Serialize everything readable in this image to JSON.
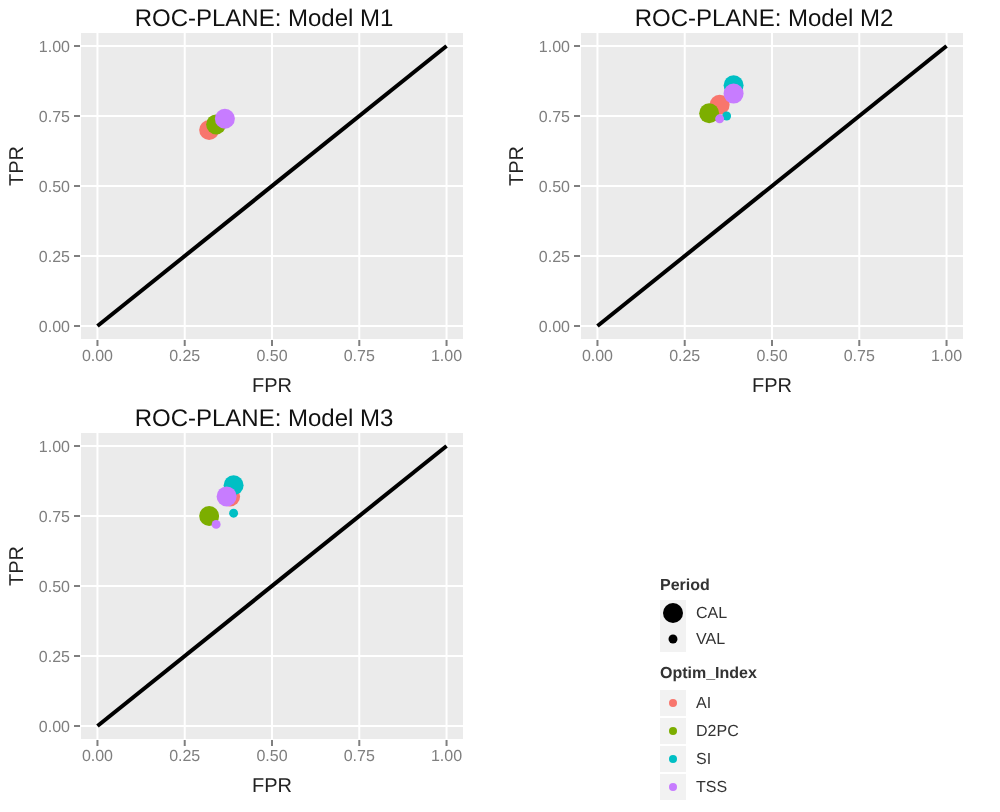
{
  "chart_data": [
    {
      "type": "bubble",
      "title": "ROC-PLANE: Model M1",
      "xlabel": "FPR",
      "ylabel": "TPR",
      "xlim": [
        -0.05,
        1.05
      ],
      "ylim": [
        -0.05,
        1.05
      ],
      "xticks": [
        {
          "value": 0,
          "label": "0.00"
        },
        {
          "value": 0.25,
          "label": "0.25"
        },
        {
          "value": 0.5,
          "label": "0.50"
        },
        {
          "value": 0.75,
          "label": "0.75"
        },
        {
          "value": 1,
          "label": "1.00"
        }
      ],
      "yticks": [
        {
          "value": 0,
          "label": "0.00"
        },
        {
          "value": 0.25,
          "label": "0.25"
        },
        {
          "value": 0.5,
          "label": "0.50"
        },
        {
          "value": 0.75,
          "label": "0.75"
        },
        {
          "value": 1,
          "label": "1.00"
        }
      ],
      "grid": true,
      "legend": false,
      "series": [
        {
          "type": "line",
          "color": "#000000",
          "x": [
            0,
            1
          ],
          "values": [
            0,
            1
          ]
        },
        {
          "color": "#f8766d",
          "x": [
            0.32
          ],
          "values": [
            0.7
          ],
          "sizes": [
            1
          ]
        },
        {
          "color": "#7cae00",
          "x": [
            0.34
          ],
          "values": [
            0.72
          ],
          "sizes": [
            1
          ]
        },
        {
          "color": "#c77cff",
          "x": [
            0.365
          ],
          "values": [
            0.74
          ],
          "sizes": [
            1
          ]
        }
      ]
    },
    {
      "type": "bubble",
      "title": "ROC-PLANE: Model M2",
      "xlabel": "FPR",
      "ylabel": "TPR",
      "xlim": [
        -0.05,
        1.05
      ],
      "ylim": [
        -0.05,
        1.05
      ],
      "xticks": [
        {
          "value": 0,
          "label": "0.00"
        },
        {
          "value": 0.25,
          "label": "0.25"
        },
        {
          "value": 0.5,
          "label": "0.50"
        },
        {
          "value": 0.75,
          "label": "0.75"
        },
        {
          "value": 1,
          "label": "1.00"
        }
      ],
      "yticks": [
        {
          "value": 0,
          "label": "0.00"
        },
        {
          "value": 0.25,
          "label": "0.25"
        },
        {
          "value": 0.5,
          "label": "0.50"
        },
        {
          "value": 0.75,
          "label": "0.75"
        },
        {
          "value": 1,
          "label": "1.00"
        }
      ],
      "grid": true,
      "legend": false,
      "series": [
        {
          "type": "line",
          "color": "#000000",
          "x": [
            0,
            1
          ],
          "values": [
            0,
            1
          ]
        },
        {
          "color": "#f8766d",
          "x": [
            0.35
          ],
          "values": [
            0.79
          ],
          "sizes": [
            1
          ]
        },
        {
          "color": "#7cae00",
          "x": [
            0.32
          ],
          "values": [
            0.76
          ],
          "sizes": [
            1
          ]
        },
        {
          "color": "#00bfc4",
          "x": [
            0.39,
            0.37
          ],
          "values": [
            0.86,
            0.75
          ],
          "sizes": [
            1,
            0.2
          ]
        },
        {
          "color": "#c77cff",
          "x": [
            0.39,
            0.35
          ],
          "values": [
            0.83,
            0.74
          ],
          "sizes": [
            1,
            0.2
          ]
        }
      ]
    },
    {
      "type": "bubble",
      "title": "ROC-PLANE: Model M3",
      "xlabel": "FPR",
      "ylabel": "TPR",
      "xlim": [
        -0.05,
        1.05
      ],
      "ylim": [
        -0.05,
        1.05
      ],
      "xticks": [
        {
          "value": 0,
          "label": "0.00"
        },
        {
          "value": 0.25,
          "label": "0.25"
        },
        {
          "value": 0.5,
          "label": "0.50"
        },
        {
          "value": 0.75,
          "label": "0.75"
        },
        {
          "value": 1,
          "label": "1.00"
        }
      ],
      "yticks": [
        {
          "value": 0,
          "label": "0.00"
        },
        {
          "value": 0.25,
          "label": "0.25"
        },
        {
          "value": 0.5,
          "label": "0.50"
        },
        {
          "value": 0.75,
          "label": "0.75"
        },
        {
          "value": 1,
          "label": "1.00"
        }
      ],
      "grid": true,
      "legend": "right",
      "legend_title": "Optim_Index",
      "annotations": [
        "Period"
      ],
      "size_legend": [
        {
          "value": 1,
          "label": "CAL"
        },
        {
          "value": 0.2,
          "label": "VAL"
        }
      ],
      "series": [
        {
          "type": "line",
          "color": "#000000",
          "x": [
            0,
            1
          ],
          "values": [
            0,
            1
          ]
        },
        {
          "name": "AI",
          "color": "#f8766d",
          "x": [
            0.38
          ],
          "values": [
            0.82
          ],
          "sizes": [
            1
          ]
        },
        {
          "name": "D2PC",
          "color": "#7cae00",
          "x": [
            0.32
          ],
          "values": [
            0.75
          ],
          "sizes": [
            1
          ]
        },
        {
          "name": "SI",
          "color": "#00bfc4",
          "x": [
            0.39,
            0.39
          ],
          "values": [
            0.86,
            0.76
          ],
          "sizes": [
            1,
            0.2
          ]
        },
        {
          "name": "TSS",
          "color": "#c77cff",
          "x": [
            0.37,
            0.34
          ],
          "values": [
            0.82,
            0.72
          ],
          "sizes": [
            1,
            0.2
          ]
        }
      ]
    }
  ]
}
